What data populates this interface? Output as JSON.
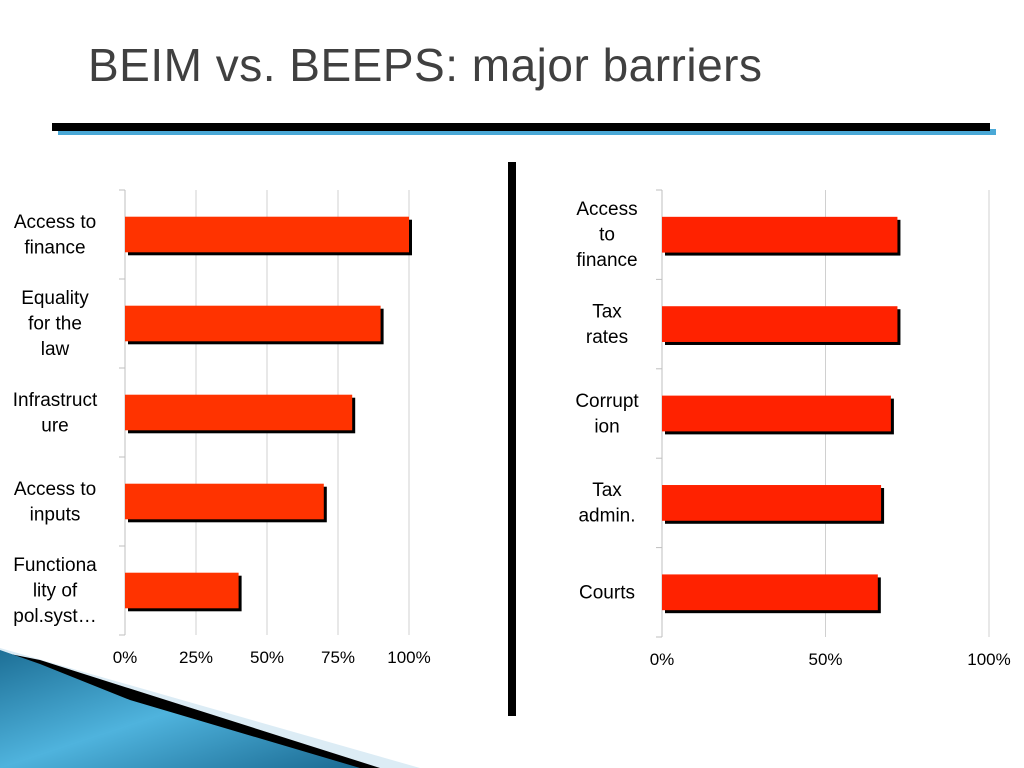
{
  "slide": {
    "title": "BEIM vs. BEEPS: major barriers",
    "colors": {
      "bar": "#ff3300",
      "bar_right": "#ff2200",
      "bar_shadow": "#000000",
      "rule": "#000000",
      "rule_accent": "#4aa8d6",
      "title": "#404040"
    }
  },
  "chart_data": [
    {
      "type": "bar",
      "orientation": "horizontal",
      "title": "",
      "categories": [
        [
          "Access to",
          "finance"
        ],
        [
          "Equality",
          "for the",
          "law"
        ],
        [
          "Infrastruct",
          "ure"
        ],
        [
          "Access to",
          "inputs"
        ],
        [
          "Functiona",
          "lity of",
          "pol.syst…"
        ]
      ],
      "values": [
        1.0,
        0.9,
        0.8,
        0.7,
        0.4
      ],
      "xlim": [
        0,
        1
      ],
      "x_ticks": [
        "0%",
        "25%",
        "50%",
        "75%",
        "100%"
      ],
      "grid": true
    },
    {
      "type": "bar",
      "orientation": "horizontal",
      "title": "",
      "categories": [
        [
          "Access",
          "to",
          "finance"
        ],
        [
          "Tax",
          "rates"
        ],
        [
          "Corrupt",
          "ion"
        ],
        [
          "Tax",
          "admin."
        ],
        [
          "Courts"
        ]
      ],
      "values": [
        0.72,
        0.72,
        0.7,
        0.67,
        0.66
      ],
      "xlim": [
        0,
        1
      ],
      "x_ticks": [
        "0%",
        "50%",
        "100%"
      ],
      "grid": true
    }
  ]
}
